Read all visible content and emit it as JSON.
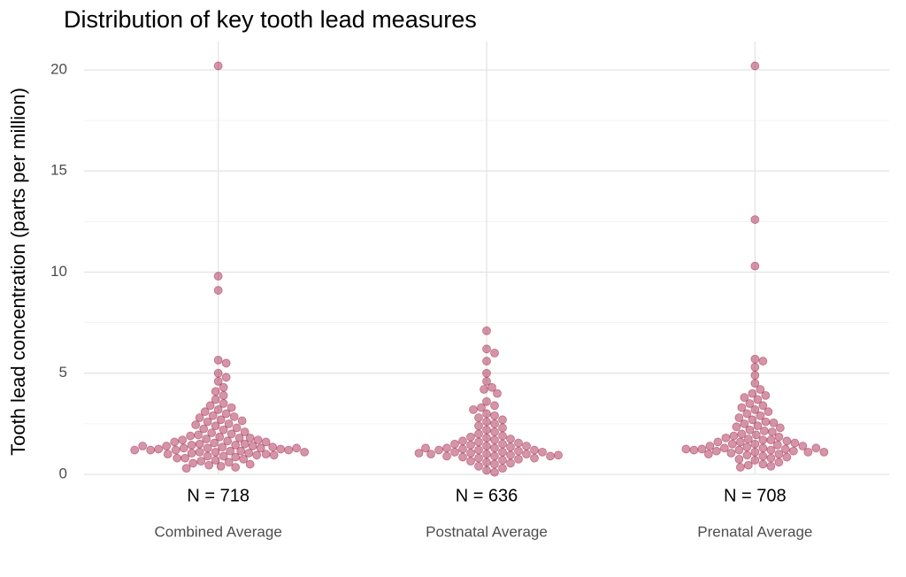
{
  "chart_data": {
    "type": "beeswarm",
    "title": "Distribution of key tooth lead measures",
    "y_label": "Tooth lead concentration (parts per million)",
    "color": "#a0153e",
    "ylim": [
      0,
      20
    ],
    "yticks": [
      0,
      5,
      10,
      15,
      20
    ],
    "yminor": [
      2.5,
      7.5,
      12.5,
      17.5
    ],
    "grid": true,
    "groups": [
      {
        "name": "Combined Average",
        "n_label": "N = 718",
        "values": [
          20.2,
          9.8,
          9.1,
          5.65,
          5.5,
          5.0,
          4.8,
          4.6,
          4.3,
          4.1,
          3.9,
          3.7,
          3.5,
          3.4,
          3.3,
          3.2,
          3.1,
          3.0,
          2.9,
          2.85,
          2.8,
          2.7,
          2.65,
          2.6,
          2.5,
          2.45,
          2.4,
          2.3,
          2.25,
          2.2,
          2.1,
          2.05,
          2.0,
          1.95,
          1.9,
          1.85,
          1.8,
          1.8,
          1.75,
          1.7,
          1.7,
          1.65,
          1.6,
          1.6,
          1.55,
          1.5,
          1.5,
          1.45,
          1.45,
          1.4,
          1.4,
          1.35,
          1.35,
          1.3,
          1.3,
          1.3,
          1.25,
          1.25,
          1.2,
          1.2,
          1.2,
          1.15,
          1.15,
          1.1,
          1.1,
          1.05,
          1.05,
          1.0,
          1.0,
          0.95,
          0.95,
          0.9,
          0.9,
          0.85,
          0.8,
          0.8,
          0.75,
          0.7,
          0.65,
          0.6,
          0.55,
          0.5,
          0.45,
          0.4,
          0.35,
          0.3,
          1.4,
          1.3,
          1.2,
          1.1
        ]
      },
      {
        "name": "Postnatal Average",
        "n_label": "N = 636",
        "values": [
          7.1,
          6.2,
          6.0,
          5.6,
          5.0,
          4.6,
          4.3,
          4.2,
          4.0,
          3.6,
          3.4,
          3.3,
          3.2,
          3.0,
          2.9,
          2.8,
          2.7,
          2.6,
          2.5,
          2.4,
          2.3,
          2.2,
          2.1,
          2.0,
          1.9,
          1.85,
          1.8,
          1.75,
          1.7,
          1.65,
          1.6,
          1.55,
          1.5,
          1.5,
          1.45,
          1.4,
          1.4,
          1.35,
          1.3,
          1.3,
          1.25,
          1.2,
          1.2,
          1.15,
          1.1,
          1.1,
          1.05,
          1.0,
          1.0,
          0.95,
          0.9,
          0.9,
          0.85,
          0.8,
          0.8,
          0.75,
          0.7,
          0.65,
          0.6,
          0.55,
          0.5,
          0.4,
          0.3,
          0.2,
          0.1,
          1.2,
          1.1,
          1.0,
          0.9,
          1.3,
          1.05,
          0.95
        ]
      },
      {
        "name": "Prenatal Average",
        "n_label": "N = 708",
        "values": [
          20.2,
          12.6,
          10.3,
          5.7,
          5.6,
          5.3,
          4.9,
          4.5,
          4.2,
          4.0,
          3.9,
          3.8,
          3.7,
          3.5,
          3.4,
          3.3,
          3.2,
          3.1,
          3.0,
          2.9,
          2.8,
          2.7,
          2.6,
          2.55,
          2.5,
          2.4,
          2.35,
          2.3,
          2.2,
          2.15,
          2.1,
          2.0,
          1.95,
          1.9,
          1.85,
          1.8,
          1.75,
          1.7,
          1.7,
          1.65,
          1.6,
          1.6,
          1.55,
          1.5,
          1.5,
          1.45,
          1.4,
          1.4,
          1.35,
          1.3,
          1.3,
          1.25,
          1.25,
          1.2,
          1.2,
          1.15,
          1.15,
          1.1,
          1.1,
          1.05,
          1.0,
          1.0,
          0.95,
          0.9,
          0.85,
          0.8,
          0.75,
          0.7,
          0.6,
          0.5,
          0.45,
          0.4,
          0.35,
          1.3,
          1.2,
          1.1,
          1.25
        ]
      }
    ]
  }
}
